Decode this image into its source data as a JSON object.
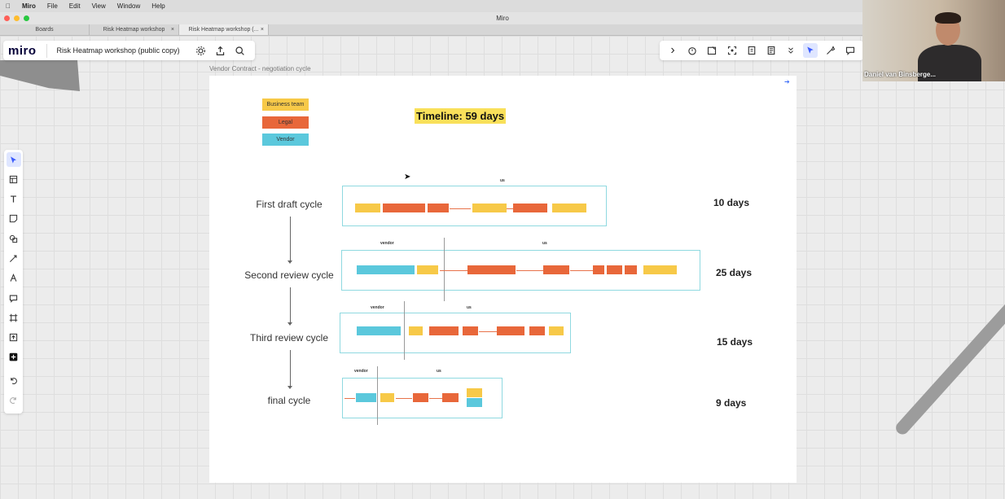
{
  "menubar": {
    "app": "Miro",
    "items": [
      "File",
      "Edit",
      "View",
      "Window",
      "Help"
    ]
  },
  "window": {
    "title": "Miro"
  },
  "tabs": [
    {
      "label": "Boards"
    },
    {
      "label": "Risk Heatmap workshop"
    },
    {
      "label": "Risk Heatmap workshop (..."
    }
  ],
  "header": {
    "logo": "miro",
    "board_name": "Risk Heatmap workshop (public copy)"
  },
  "frame": {
    "label": "Vendor Contract - negotiation cycle"
  },
  "legend": [
    {
      "label": "Business team",
      "color": "#f7c948"
    },
    {
      "label": "Legal",
      "color": "#e8673a"
    },
    {
      "label": "Vendor",
      "color": "#5bc8dc"
    }
  ],
  "timeline": "Timeline: 59 days",
  "cycles": [
    {
      "label": "First draft cycle",
      "days": "10 days",
      "top_label": "us"
    },
    {
      "label": "Second review cycle",
      "days": "25 days",
      "left_label": "vendor",
      "right_label": "us"
    },
    {
      "label": "Third review cycle",
      "days": "15 days",
      "left_label": "vendor",
      "right_label": "us"
    },
    {
      "label": "final cycle",
      "days": "9 days",
      "left_label": "vendor",
      "right_label": "us"
    }
  ],
  "webcam": {
    "name": "Daniel van Binsberge..."
  },
  "colors": {
    "accent": "#3b5bfd",
    "frame_border": "#8fd9e0"
  }
}
